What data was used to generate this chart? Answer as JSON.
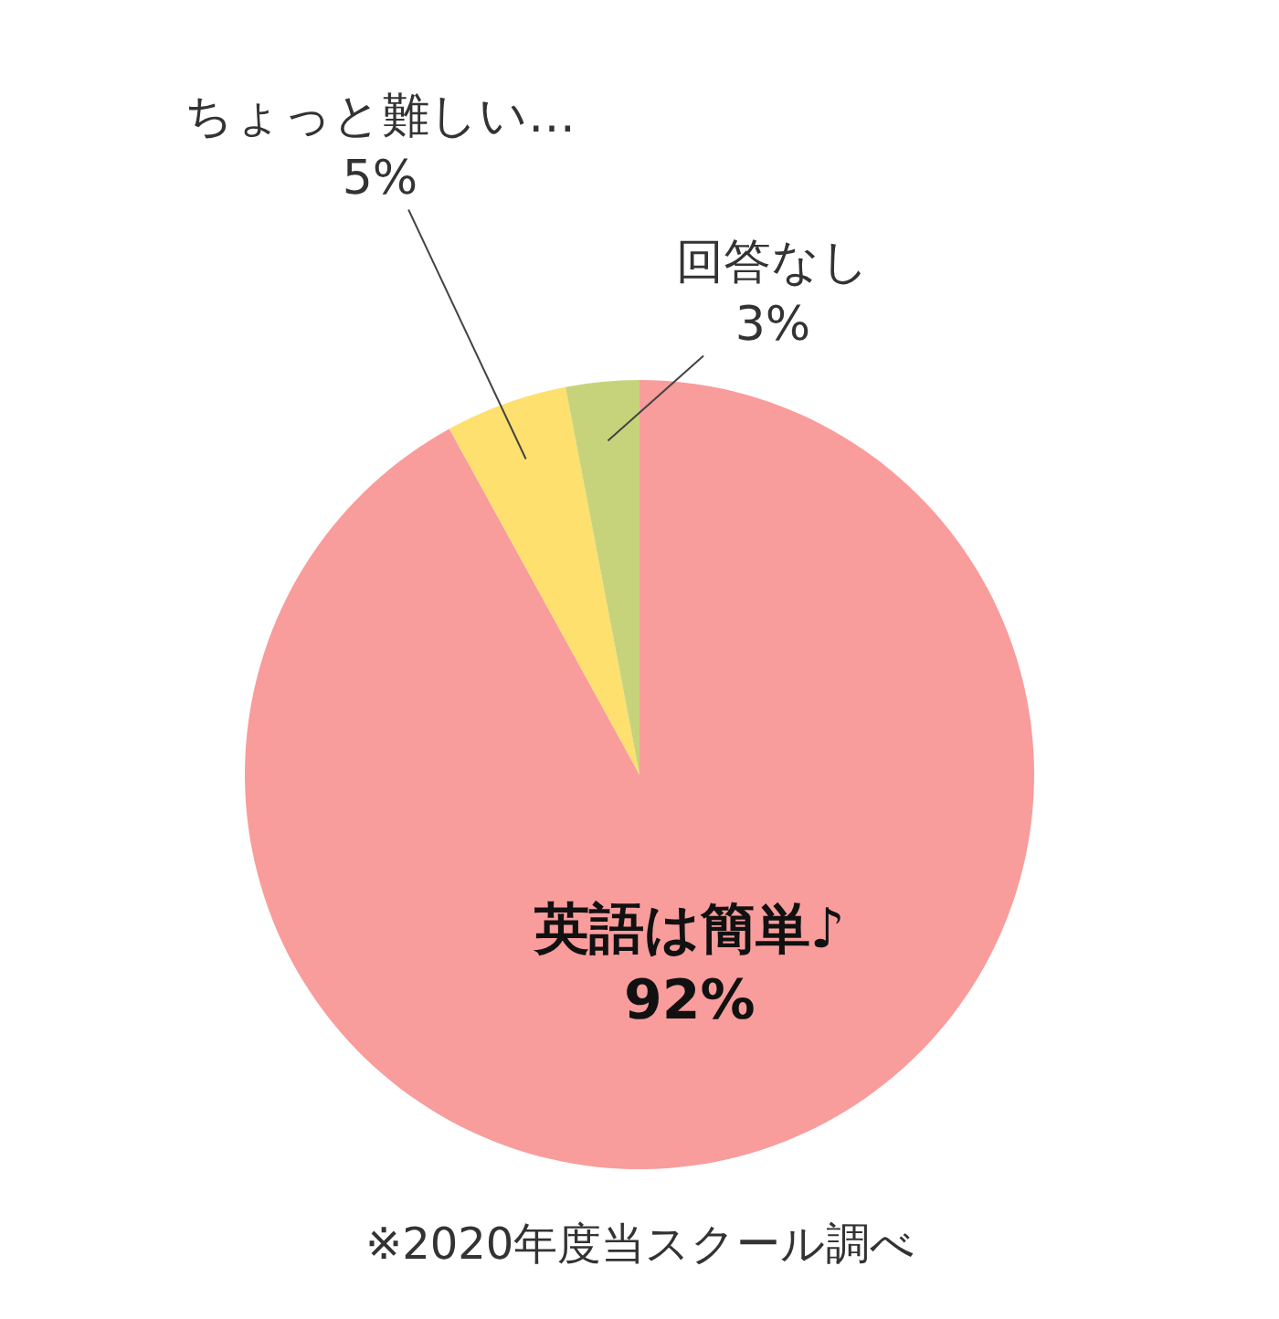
{
  "chart_data": {
    "type": "pie",
    "categories": [
      "英語は簡単♪",
      "ちょっと難しい…",
      "回答なし"
    ],
    "values": [
      92,
      5,
      3
    ],
    "value_labels": [
      "92%",
      "5%",
      "3%"
    ],
    "colors": [
      "#f99c9c",
      "#fde06e",
      "#c6d37a"
    ],
    "annotations": [
      "※2020年度当スクール調べ"
    ],
    "legend": false
  }
}
